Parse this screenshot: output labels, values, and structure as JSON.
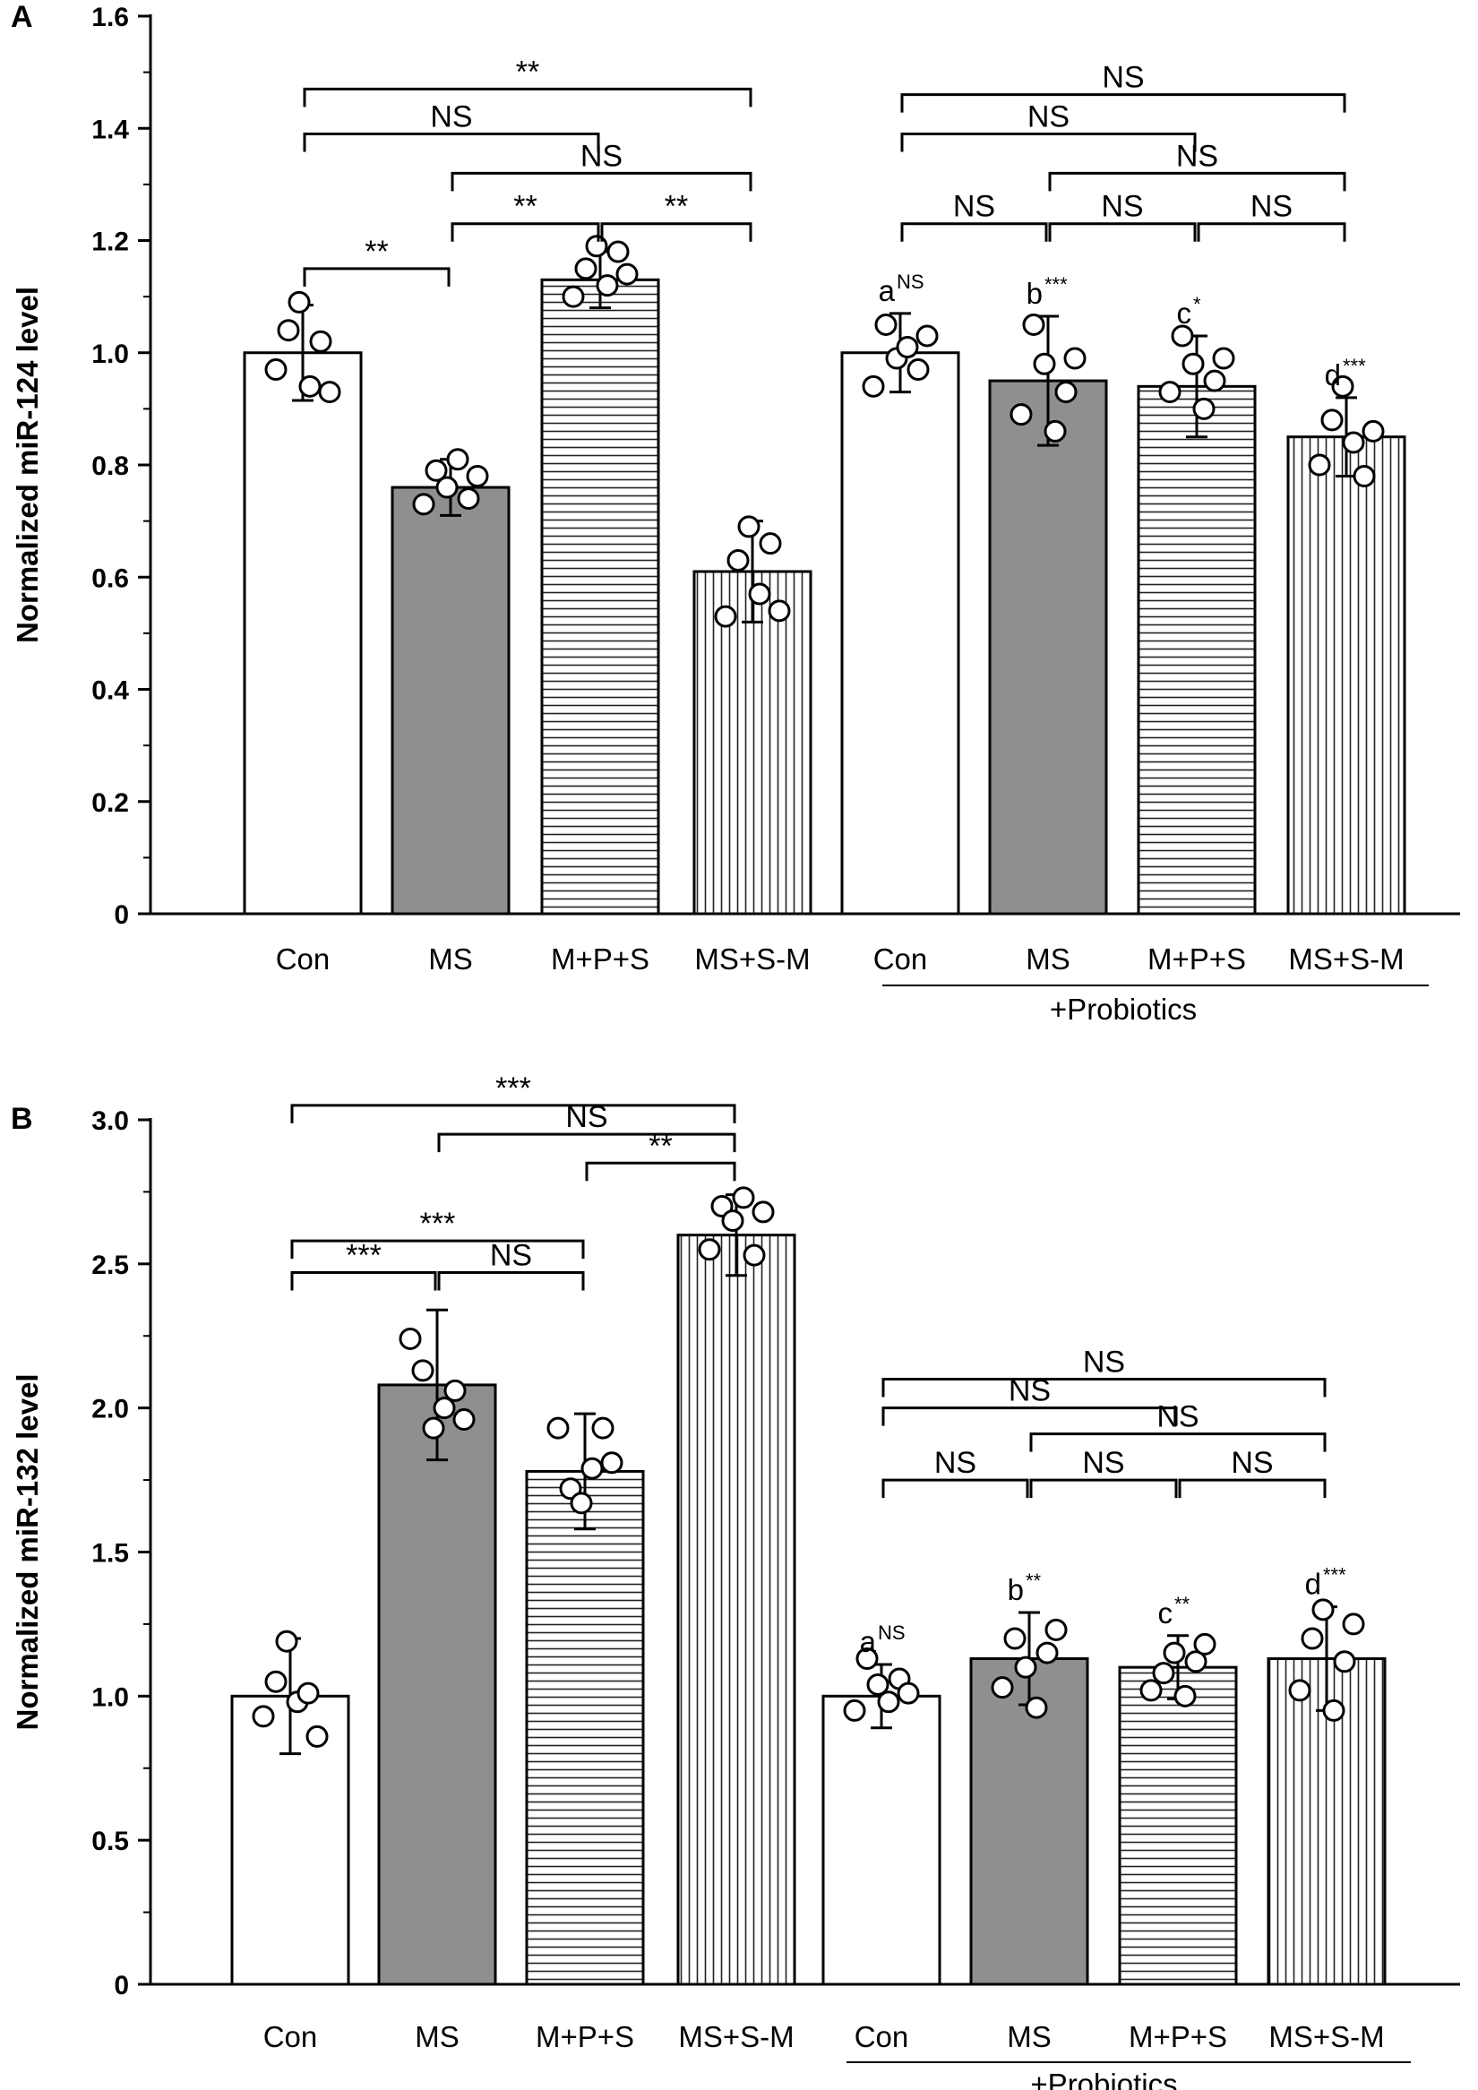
{
  "chart_data": [
    {
      "type": "bar",
      "panel_label": "A",
      "ylabel": "Normalized miR-124 level",
      "ylim": [
        0,
        1.6
      ],
      "yticks": [
        "0",
        "0.2",
        "0.4",
        "0.6",
        "0.8",
        "1.0",
        "1.2",
        "1.4",
        "1.6"
      ],
      "categories": [
        "Con",
        "MS",
        "M+P+S",
        "MS+S-M",
        "Con",
        "MS",
        "M+P+S",
        "MS+S-M"
      ],
      "group_label": "+Probiotics",
      "group_range": [
        4,
        7
      ],
      "fills": [
        "white",
        "gray",
        "hlines",
        "vlines",
        "white",
        "gray",
        "hlines",
        "vlines"
      ],
      "values": [
        1.0,
        0.76,
        1.13,
        0.61,
        1.0,
        0.95,
        0.94,
        0.85
      ],
      "errors": [
        0.085,
        0.05,
        0.05,
        0.09,
        0.07,
        0.115,
        0.09,
        0.07
      ],
      "points": [
        [
          0.97,
          1.04,
          1.09,
          0.94,
          1.02,
          0.93
        ],
        [
          0.73,
          0.79,
          0.76,
          0.81,
          0.74,
          0.78
        ],
        [
          1.1,
          1.15,
          1.19,
          1.12,
          1.18,
          1.14
        ],
        [
          0.53,
          0.63,
          0.69,
          0.57,
          0.66,
          0.54
        ],
        [
          0.94,
          1.05,
          0.99,
          1.01,
          0.97,
          1.03
        ],
        [
          0.89,
          1.05,
          0.98,
          0.86,
          0.93,
          0.99
        ],
        [
          0.93,
          1.03,
          0.98,
          0.9,
          0.95,
          0.99
        ],
        [
          0.8,
          0.88,
          0.94,
          0.84,
          0.78,
          0.86
        ]
      ],
      "point_letters": [
        {
          "bar": 4,
          "letter": "a",
          "sup": "NS"
        },
        {
          "bar": 5,
          "letter": "b",
          "sup": "***"
        },
        {
          "bar": 6,
          "letter": "c",
          "sup": "*"
        },
        {
          "bar": 7,
          "letter": "d",
          "sup": "***"
        }
      ],
      "comparisons": [
        {
          "from": 0,
          "to": 3,
          "label": "**",
          "y": 1.47
        },
        {
          "from": 0,
          "to": 2,
          "label": "NS",
          "y": 1.39
        },
        {
          "from": 1,
          "to": 3,
          "label": "NS",
          "y": 1.32
        },
        {
          "from": 1,
          "to": 2,
          "label": "**",
          "y": 1.23
        },
        {
          "from": 2,
          "to": 3,
          "label": "**",
          "y": 1.23
        },
        {
          "from": 0,
          "to": 1,
          "label": "**",
          "y": 1.15
        },
        {
          "from": 4,
          "to": 7,
          "label": "NS",
          "y": 1.46
        },
        {
          "from": 4,
          "to": 6,
          "label": "NS",
          "y": 1.39
        },
        {
          "from": 5,
          "to": 7,
          "label": "NS",
          "y": 1.32
        },
        {
          "from": 4,
          "to": 5,
          "label": "NS",
          "y": 1.23
        },
        {
          "from": 5,
          "to": 6,
          "label": "NS",
          "y": 1.23
        },
        {
          "from": 6,
          "to": 7,
          "label": "NS",
          "y": 1.23
        }
      ]
    },
    {
      "type": "bar",
      "panel_label": "B",
      "ylabel": "Normalized miR-132 level",
      "ylim": [
        0,
        3.0
      ],
      "yticks": [
        "0",
        "0.5",
        "1.0",
        "1.5",
        "2.0",
        "2.5",
        "3.0"
      ],
      "categories": [
        "Con",
        "MS",
        "M+P+S",
        "MS+S-M",
        "Con",
        "MS",
        "M+P+S",
        "MS+S-M"
      ],
      "group_label": "+Probiotics",
      "group_range": [
        4,
        7
      ],
      "fills": [
        "white",
        "gray",
        "hlines",
        "vlines",
        "white",
        "gray",
        "hlines",
        "vlines"
      ],
      "values": [
        1.0,
        2.08,
        1.78,
        2.6,
        1.0,
        1.13,
        1.1,
        1.13
      ],
      "errors": [
        0.2,
        0.26,
        0.2,
        0.14,
        0.11,
        0.16,
        0.11,
        0.18
      ],
      "points": [
        [
          0.93,
          1.05,
          1.19,
          0.98,
          1.01,
          0.86
        ],
        [
          2.24,
          2.13,
          1.93,
          2.0,
          2.06,
          1.96
        ],
        [
          1.93,
          1.72,
          1.67,
          1.79,
          1.93,
          1.81
        ],
        [
          2.55,
          2.7,
          2.65,
          2.73,
          2.53,
          2.68
        ],
        [
          0.95,
          1.13,
          1.04,
          0.98,
          1.06,
          1.01
        ],
        [
          1.03,
          1.2,
          1.1,
          0.96,
          1.15,
          1.23
        ],
        [
          1.02,
          1.08,
          1.15,
          1.0,
          1.12,
          1.18
        ],
        [
          1.02,
          1.2,
          1.3,
          0.95,
          1.12,
          1.25
        ]
      ],
      "point_letters": [
        {
          "bar": 4,
          "letter": "a",
          "sup": "NS"
        },
        {
          "bar": 5,
          "letter": "b",
          "sup": "**"
        },
        {
          "bar": 6,
          "letter": "c",
          "sup": "**"
        },
        {
          "bar": 7,
          "letter": "d",
          "sup": "***"
        }
      ],
      "comparisons": [
        {
          "from": 0,
          "to": 3,
          "label": "***",
          "y": 3.05
        },
        {
          "from": 1,
          "to": 3,
          "label": "NS",
          "y": 2.95
        },
        {
          "from": 2,
          "to": 3,
          "label": "**",
          "y": 2.85
        },
        {
          "from": 0,
          "to": 2,
          "label": "***",
          "y": 2.58
        },
        {
          "from": 0,
          "to": 1,
          "label": "***",
          "y": 2.47
        },
        {
          "from": 1,
          "to": 2,
          "label": "NS",
          "y": 2.47
        },
        {
          "from": 4,
          "to": 7,
          "label": "NS",
          "y": 2.1
        },
        {
          "from": 4,
          "to": 6,
          "label": "NS",
          "y": 2.0
        },
        {
          "from": 5,
          "to": 7,
          "label": "NS",
          "y": 1.91
        },
        {
          "from": 4,
          "to": 5,
          "label": "NS",
          "y": 1.75
        },
        {
          "from": 5,
          "to": 6,
          "label": "NS",
          "y": 1.75
        },
        {
          "from": 6,
          "to": 7,
          "label": "NS",
          "y": 1.75
        }
      ]
    }
  ]
}
